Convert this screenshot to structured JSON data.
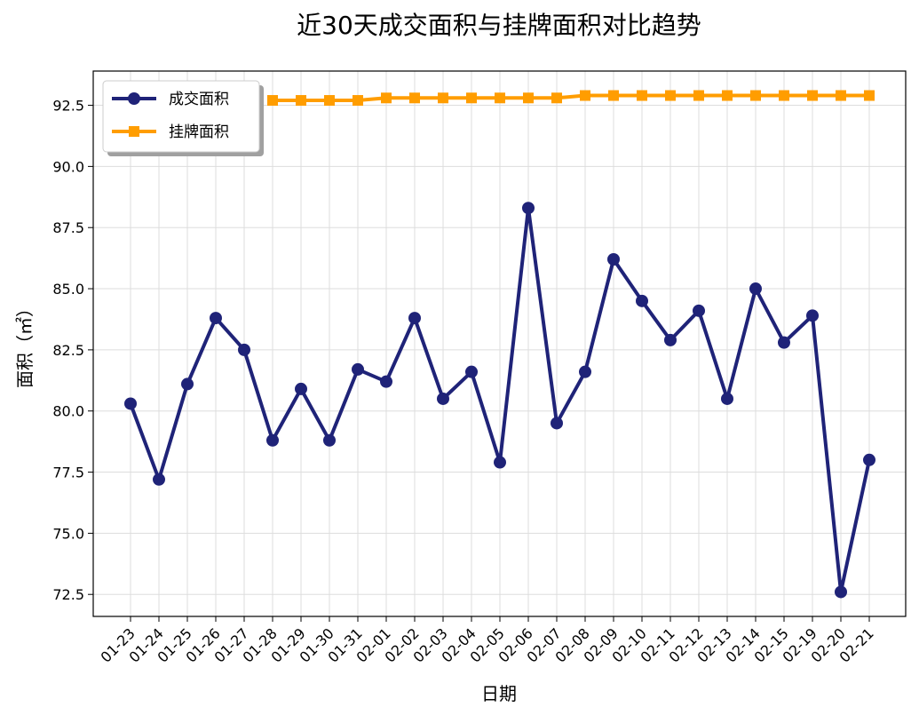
{
  "chart_data": {
    "type": "line",
    "title": "近30天成交面积与挂牌面积对比趋势",
    "xlabel": "日期",
    "ylabel": "面积（㎡）",
    "categories": [
      "01-23",
      "01-24",
      "01-25",
      "01-26",
      "01-27",
      "01-28",
      "01-29",
      "01-30",
      "01-31",
      "02-01",
      "02-02",
      "02-03",
      "02-04",
      "02-05",
      "02-06",
      "02-07",
      "02-08",
      "02-09",
      "02-10",
      "02-11",
      "02-12",
      "02-13",
      "02-14",
      "02-15",
      "02-19",
      "02-20",
      "02-21"
    ],
    "ylim": [
      71.6,
      93.9
    ],
    "yticks": [
      72.5,
      75.0,
      77.5,
      80.0,
      82.5,
      85.0,
      87.5,
      90.0,
      92.5
    ],
    "grid": true,
    "legend_position": "top-left",
    "series": [
      {
        "name": "成交面积",
        "color": "#1f2378",
        "marker": "circle",
        "values": [
          80.3,
          77.2,
          81.1,
          83.8,
          82.5,
          78.8,
          80.9,
          78.8,
          81.7,
          81.2,
          83.8,
          80.5,
          81.6,
          77.9,
          88.3,
          79.5,
          81.6,
          86.2,
          84.5,
          82.9,
          84.1,
          80.5,
          85.0,
          82.8,
          83.9,
          72.6,
          78.0
        ]
      },
      {
        "name": "挂牌面积",
        "color": "#ff9d00",
        "marker": "square",
        "values": [
          null,
          null,
          null,
          null,
          null,
          92.7,
          92.7,
          92.7,
          92.7,
          92.8,
          92.8,
          92.8,
          92.8,
          92.8,
          92.8,
          92.8,
          92.9,
          92.9,
          92.9,
          92.9,
          92.9,
          92.9,
          92.9,
          92.9,
          92.9,
          92.9,
          92.9
        ]
      }
    ]
  }
}
